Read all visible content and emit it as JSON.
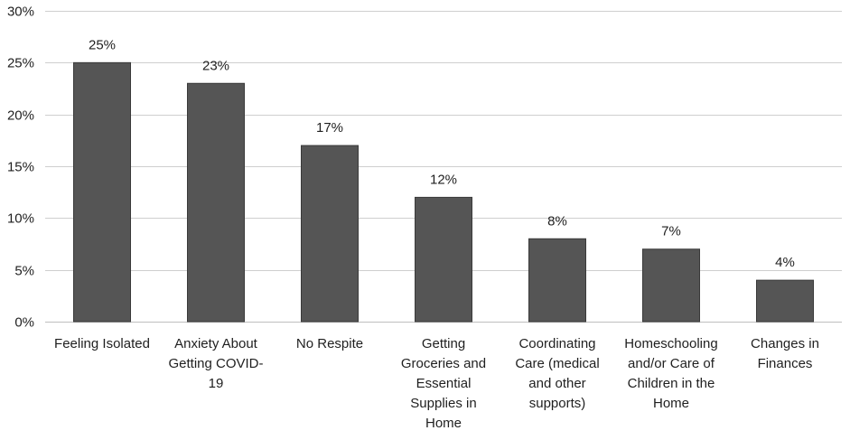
{
  "chart_data": {
    "type": "bar",
    "title": "",
    "xlabel": "",
    "ylabel": "",
    "ylim": [
      0,
      30
    ],
    "y_ticks": [
      0,
      5,
      10,
      15,
      20,
      25,
      30
    ],
    "y_tick_labels": [
      "0%",
      "5%",
      "10%",
      "15%",
      "20%",
      "25%",
      "30%"
    ],
    "grid": true,
    "legend": "none",
    "bar_color": "#555555",
    "categories": [
      [
        "Feeling Isolated"
      ],
      [
        "Anxiety About",
        "Getting COVID-",
        "19"
      ],
      [
        "No Respite"
      ],
      [
        "Getting",
        "Groceries and",
        "Essential",
        "Supplies in",
        "Home"
      ],
      [
        "Coordinating",
        "Care (medical",
        "and other",
        "supports)"
      ],
      [
        "Homeschooling",
        "and/or Care of",
        "Children in the",
        "Home"
      ],
      [
        "Changes in",
        "Finances"
      ]
    ],
    "values": [
      25,
      23,
      17,
      12,
      8,
      7,
      4
    ],
    "data_labels": [
      "25%",
      "23%",
      "17%",
      "12%",
      "8%",
      "7%",
      "4%"
    ]
  }
}
